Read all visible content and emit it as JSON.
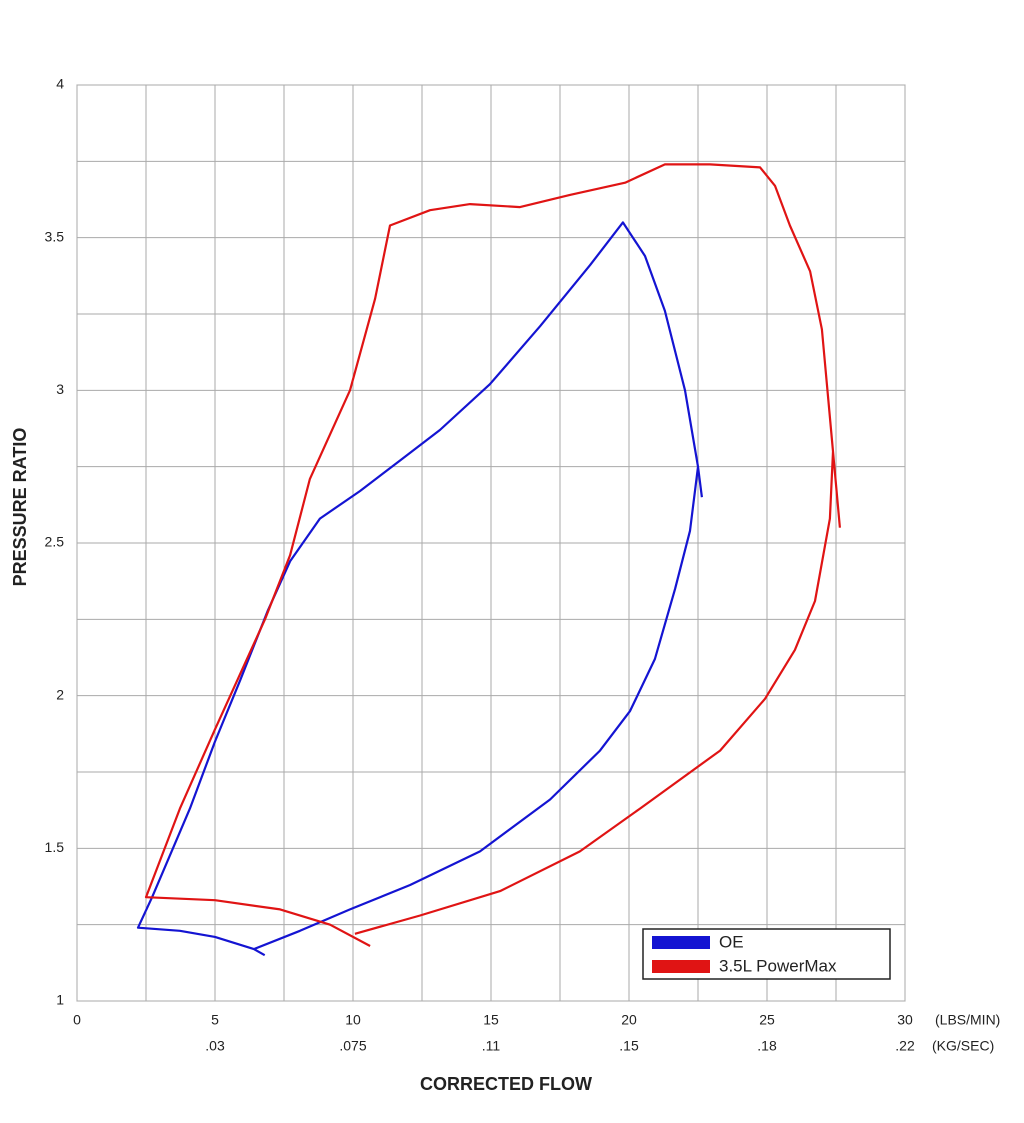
{
  "chart_data": {
    "type": "line",
    "x_label": "CORRECTED FLOW",
    "y_label": "PRESSURE RATIO",
    "x_unit": "(LBS/MIN)",
    "x2_unit": "(KG/SEC)",
    "xlim": [
      0,
      30
    ],
    "ylim": [
      1,
      4
    ],
    "xticks": [
      0,
      5,
      10,
      15,
      20,
      25,
      30
    ],
    "x2_tick_labels": [
      null,
      ".03",
      ".075",
      ".11",
      ".15",
      ".18",
      ".22"
    ],
    "yticks": [
      1,
      1.5,
      2,
      2.5,
      3,
      3.5,
      4
    ],
    "x_minor_grid": [
      2.5,
      7.5,
      12.5,
      17.5,
      22.5,
      27.5
    ],
    "y_minor_grid": [
      1.25,
      1.75,
      2.25,
      2.75,
      3.25,
      3.75
    ],
    "grid": true,
    "legend": "lower right",
    "series": [
      {
        "name": "OE",
        "color": "#1414d2",
        "x": [
          6.8,
          6.41,
          5.0,
          3.73,
          2.21,
          2.72,
          4.09,
          5.0,
          5.91,
          6.92,
          7.72,
          8.8,
          10.25,
          11.7,
          13.15,
          14.96,
          16.78,
          18.59,
          19.78,
          20.58,
          21.3,
          22.03,
          22.5,
          22.64,
          null,
          22.5,
          22.21,
          21.67,
          20.94,
          20.04,
          18.95,
          17.14,
          14.6,
          12.07,
          9.89,
          8.08,
          6.41
        ],
        "y": [
          1.15,
          1.17,
          1.21,
          1.23,
          1.24,
          1.34,
          1.63,
          1.85,
          2.05,
          2.28,
          2.44,
          2.58,
          2.67,
          2.77,
          2.87,
          3.02,
          3.21,
          3.41,
          3.55,
          3.44,
          3.26,
          3.0,
          2.75,
          2.65,
          null,
          2.75,
          2.54,
          2.35,
          2.12,
          1.95,
          1.82,
          1.66,
          1.49,
          1.38,
          1.3,
          1.23,
          1.17
        ]
      },
      {
        "name": "3.5L PowerMax",
        "color": "#e01414",
        "x": [
          10.62,
          9.17,
          7.36,
          5.0,
          2.5,
          3.73,
          5.0,
          6.81,
          7.72,
          8.44,
          9.89,
          10.8,
          11.34,
          12.79,
          14.24,
          16.05,
          17.86,
          19.86,
          21.3,
          22.93,
          24.75,
          25.29,
          25.83,
          26.56,
          26.99,
          27.39,
          27.64,
          null,
          27.39,
          27.28,
          26.74,
          26.01,
          24.93,
          23.3,
          20.4,
          18.22,
          15.33,
          12.43,
          10.07
        ],
        "y": [
          1.18,
          1.25,
          1.3,
          1.33,
          1.34,
          1.63,
          1.89,
          2.25,
          2.46,
          2.71,
          3.0,
          3.3,
          3.54,
          3.59,
          3.61,
          3.6,
          3.64,
          3.68,
          3.74,
          3.74,
          3.73,
          3.67,
          3.54,
          3.39,
          3.2,
          2.8,
          2.55,
          null,
          2.8,
          2.58,
          2.31,
          2.15,
          1.99,
          1.82,
          1.63,
          1.49,
          1.36,
          1.28,
          1.22
        ]
      }
    ]
  }
}
